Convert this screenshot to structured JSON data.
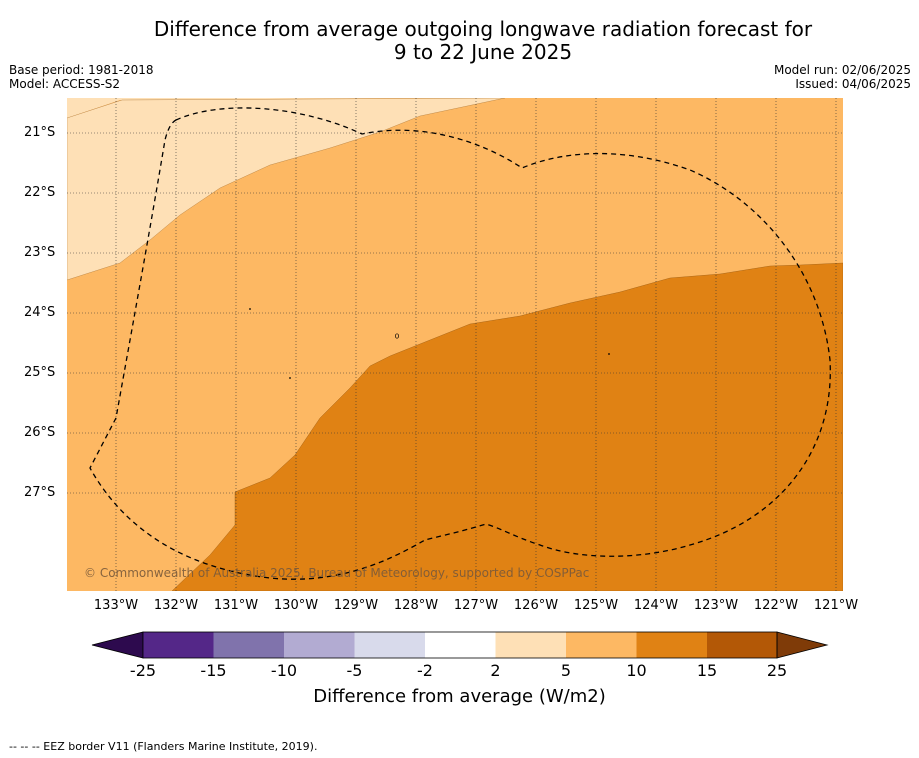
{
  "title_line1": "Difference from average outgoing longwave radiation forecast for",
  "title_line2": "9 to 22 June 2025",
  "base_period": "Base period: 1981-2018",
  "model": "Model: ACCESS-S2",
  "model_run": "Model run: 02/06/2025",
  "issued": "Issued: 04/06/2025",
  "lat_labels": [
    "21°S",
    "22°S",
    "23°S",
    "24°S",
    "25°S",
    "26°S",
    "27°S"
  ],
  "lon_labels": [
    "133°W",
    "132°W",
    "131°W",
    "130°W",
    "129°W",
    "128°W",
    "127°W",
    "126°W",
    "125°W",
    "124°W",
    "123°W",
    "122°W",
    "121°W"
  ],
  "copyright": "© Commonwealth of Australia 2025, Bureau of Meteorology, supported by COSPPac",
  "colorbar": {
    "ticks": [
      "-25",
      "-15",
      "-10",
      "-5",
      "-2",
      "2",
      "5",
      "10",
      "15",
      "25"
    ],
    "colors": [
      "#2d0a4e",
      "#542788",
      "#8073ac",
      "#b2abd2",
      "#d8daeb",
      "#ffffff",
      "#fee0b6",
      "#fdb863",
      "#e08214",
      "#b35806",
      "#7f3b08"
    ],
    "label": "Difference from average (W/m2)"
  },
  "legend_footer": "-- -- -- EEZ border V11 (Flanders Marine Institute, 2019)."
}
